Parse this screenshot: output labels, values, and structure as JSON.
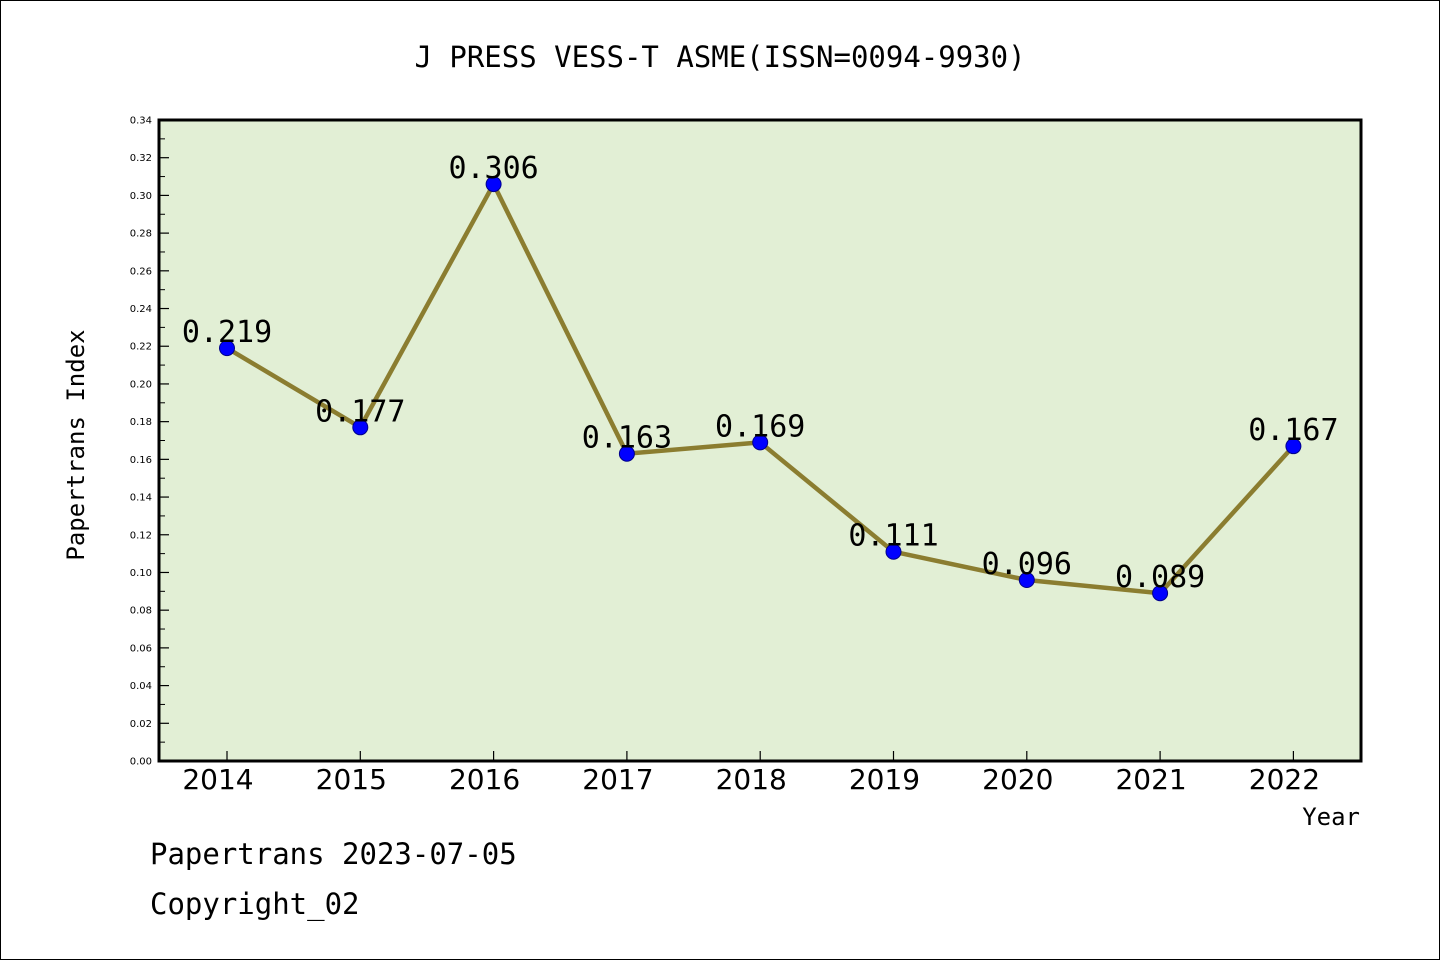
{
  "chart_data": {
    "type": "line",
    "title": "J PRESS VESS-T ASME(ISSN=0094-9930)",
    "xlabel": "Year",
    "ylabel": "Papertrans Index",
    "categories": [
      "2014",
      "2015",
      "2016",
      "2017",
      "2018",
      "2019",
      "2020",
      "2021",
      "2022"
    ],
    "values": [
      0.219,
      0.177,
      0.306,
      0.163,
      0.169,
      0.111,
      0.096,
      0.089,
      0.167
    ],
    "data_labels": [
      "0.219",
      "0.177",
      "0.306",
      "0.163",
      "0.169",
      "0.111",
      "0.096",
      "0.089",
      "0.167"
    ],
    "ylim": [
      0,
      0.34
    ],
    "yticks": [
      "0.00",
      "0.02",
      "0.04",
      "0.06",
      "0.08",
      "0.10",
      "0.12",
      "0.14",
      "0.16",
      "0.18",
      "0.20",
      "0.22",
      "0.24",
      "0.26",
      "0.28",
      "0.30",
      "0.32",
      "0.34"
    ],
    "grid": false,
    "legend": "none",
    "colors": {
      "plot_background": "#e2efd5",
      "line": "#8b7d30",
      "marker": "#0000ff"
    }
  },
  "footer": {
    "date_line": "Papertrans 2023-07-05",
    "copyright_line": "Copyright_02"
  }
}
